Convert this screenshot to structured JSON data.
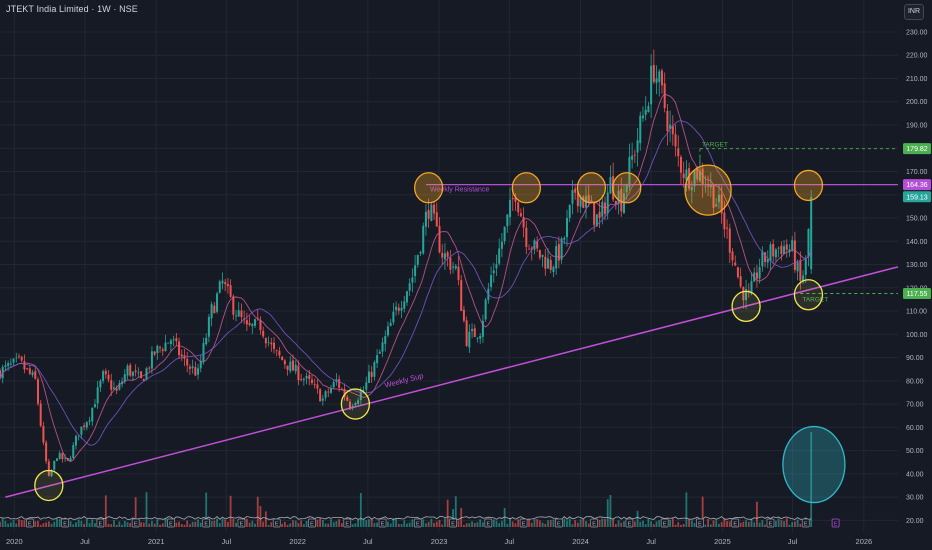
{
  "header": {
    "title": "JTEKT India Limited · 1W · NSE",
    "currency": "INR"
  },
  "colors": {
    "background": "#161a25",
    "grid": "#232733",
    "up": "#26a69a",
    "down": "#ef5350",
    "trendline": "#c050d8",
    "resistance": "#b34fd6",
    "highlight_orange": "#f5a623",
    "highlight_yellow": "#f2e94e",
    "highlight_cyan": "#2fb8c8",
    "target": "#4caf50",
    "ma_pink": "#d05a9a",
    "ma_purple": "#7b5bd0",
    "volume_line": "#d1d4dc"
  },
  "chart_data": {
    "type": "candlestick",
    "title": "JTEKT India Limited · 1W · NSE",
    "x_axis": {
      "type": "date",
      "range": [
        "2019-11-25",
        "2026-03-30"
      ],
      "tick_labels": [
        {
          "label": "2020",
          "date": "2020-01-01"
        },
        {
          "label": "Jul",
          "date": "2020-07-01"
        },
        {
          "label": "2021",
          "date": "2021-01-01"
        },
        {
          "label": "Jul",
          "date": "2021-07-01"
        },
        {
          "label": "2022",
          "date": "2022-01-01"
        },
        {
          "label": "Jul",
          "date": "2022-07-01"
        },
        {
          "label": "2023",
          "date": "2023-01-01"
        },
        {
          "label": "Jul",
          "date": "2023-07-01"
        },
        {
          "label": "2024",
          "date": "2024-01-01"
        },
        {
          "label": "Jul",
          "date": "2024-07-01"
        },
        {
          "label": "2025",
          "date": "2025-01-01"
        },
        {
          "label": "Jul",
          "date": "2025-07-01"
        },
        {
          "label": "2026",
          "date": "2026-01-01"
        }
      ]
    },
    "y_axis": {
      "range": [
        15,
        236
      ],
      "ticks": [
        "20.00",
        "30.00",
        "40.00",
        "50.00",
        "60.00",
        "70.00",
        "80.00",
        "90.00",
        "100.00",
        "110.00",
        "120.00",
        "130.00",
        "140.00",
        "150.00",
        "160.00",
        "170.00",
        "180.00",
        "190.00",
        "200.00",
        "210.00",
        "220.00",
        "230.00"
      ]
    },
    "price_path": [
      [
        "2019-11-25",
        84
      ],
      [
        "2020-01-13",
        88
      ],
      [
        "2020-02-24",
        80
      ],
      [
        "2020-03-16",
        52
      ],
      [
        "2020-03-30",
        38
      ],
      [
        "2020-04-20",
        48
      ],
      [
        "2020-05-18",
        45
      ],
      [
        "2020-06-15",
        58
      ],
      [
        "2020-07-13",
        65
      ],
      [
        "2020-08-17",
        82
      ],
      [
        "2020-09-21",
        75
      ],
      [
        "2020-10-19",
        85
      ],
      [
        "2020-11-23",
        80
      ],
      [
        "2020-12-28",
        92
      ],
      [
        "2021-02-08",
        98
      ],
      [
        "2021-03-15",
        88
      ],
      [
        "2021-04-19",
        83
      ],
      [
        "2021-05-24",
        110
      ],
      [
        "2021-06-21",
        122
      ],
      [
        "2021-07-19",
        112
      ],
      [
        "2021-08-23",
        102
      ],
      [
        "2021-09-27",
        104
      ],
      [
        "2021-11-01",
        92
      ],
      [
        "2021-12-20",
        85
      ],
      [
        "2022-02-07",
        78
      ],
      [
        "2022-03-07",
        72
      ],
      [
        "2022-04-11",
        80
      ],
      [
        "2022-05-16",
        70
      ],
      [
        "2022-06-20",
        76
      ],
      [
        "2022-08-01",
        92
      ],
      [
        "2022-09-12",
        110
      ],
      [
        "2022-10-24",
        125
      ],
      [
        "2022-12-05",
        155
      ],
      [
        "2023-01-09",
        135
      ],
      [
        "2023-02-13",
        128
      ],
      [
        "2023-03-13",
        98
      ],
      [
        "2023-04-17",
        102
      ],
      [
        "2023-05-15",
        125
      ],
      [
        "2023-06-12",
        140
      ],
      [
        "2023-07-17",
        162
      ],
      [
        "2023-08-14",
        142
      ],
      [
        "2023-09-11",
        135
      ],
      [
        "2023-10-16",
        130
      ],
      [
        "2023-11-13",
        137
      ],
      [
        "2023-12-18",
        162
      ],
      [
        "2024-01-22",
        155
      ],
      [
        "2024-02-19",
        148
      ],
      [
        "2024-03-18",
        165
      ],
      [
        "2024-04-15",
        158
      ],
      [
        "2024-05-20",
        180
      ],
      [
        "2024-06-17",
        198
      ],
      [
        "2024-07-08",
        215
      ],
      [
        "2024-08-05",
        198
      ],
      [
        "2024-09-02",
        178
      ],
      [
        "2024-09-30",
        168
      ],
      [
        "2024-10-28",
        170
      ],
      [
        "2024-11-25",
        165
      ],
      [
        "2024-12-23",
        155
      ],
      [
        "2025-01-27",
        135
      ],
      [
        "2025-02-17",
        120
      ],
      [
        "2025-03-10",
        115
      ],
      [
        "2025-04-07",
        130
      ],
      [
        "2025-05-05",
        135
      ],
      [
        "2025-06-02",
        138
      ],
      [
        "2025-06-30",
        136
      ],
      [
        "2025-07-21",
        122
      ],
      [
        "2025-08-04",
        130
      ],
      [
        "2025-08-18",
        159.13
      ]
    ],
    "price_labels": [
      {
        "value": 179.82,
        "text": "179.82",
        "color": "#4caf50"
      },
      {
        "value": 164.36,
        "text": "164.36",
        "color": "#b34fd6"
      },
      {
        "value": 159.13,
        "text": "159.13",
        "color": "#26a69a"
      },
      {
        "value": 117.55,
        "text": "117.55",
        "color": "#4caf50"
      }
    ],
    "annotations": {
      "weekly_support": {
        "label": "Weekly Sup",
        "start": [
          "2019-12-09",
          30
        ],
        "end": [
          "2026-03-30",
          129
        ]
      },
      "weekly_resistance": {
        "label": "Weekly Resistance",
        "value": 164.36,
        "start": "2022-11-28"
      },
      "targets": [
        {
          "label": "TARGET",
          "value": 179.82,
          "start": "2024-11-04"
        },
        {
          "label": "TARGET",
          "value": 117.55,
          "start": "2025-07-21"
        }
      ],
      "circles": [
        {
          "date": "2020-03-30",
          "value": 35,
          "color": "yellow"
        },
        {
          "date": "2022-05-30",
          "value": 70,
          "color": "yellow"
        },
        {
          "date": "2022-12-05",
          "value": 163,
          "color": "orange"
        },
        {
          "date": "2023-08-14",
          "value": 163,
          "color": "orange"
        },
        {
          "date": "2024-01-29",
          "value": 163,
          "color": "orange"
        },
        {
          "date": "2024-04-29",
          "value": 163,
          "color": "orange"
        },
        {
          "date": "2024-11-25",
          "value": 162,
          "color": "orange"
        },
        {
          "date": "2025-03-03",
          "value": 112,
          "color": "yellow"
        },
        {
          "date": "2025-08-11",
          "value": 117,
          "color": "yellow"
        },
        {
          "date": "2025-08-11",
          "value": 164,
          "color": "orange"
        },
        {
          "date": "2025-08-25",
          "value": 44,
          "color": "cyan"
        }
      ]
    }
  }
}
